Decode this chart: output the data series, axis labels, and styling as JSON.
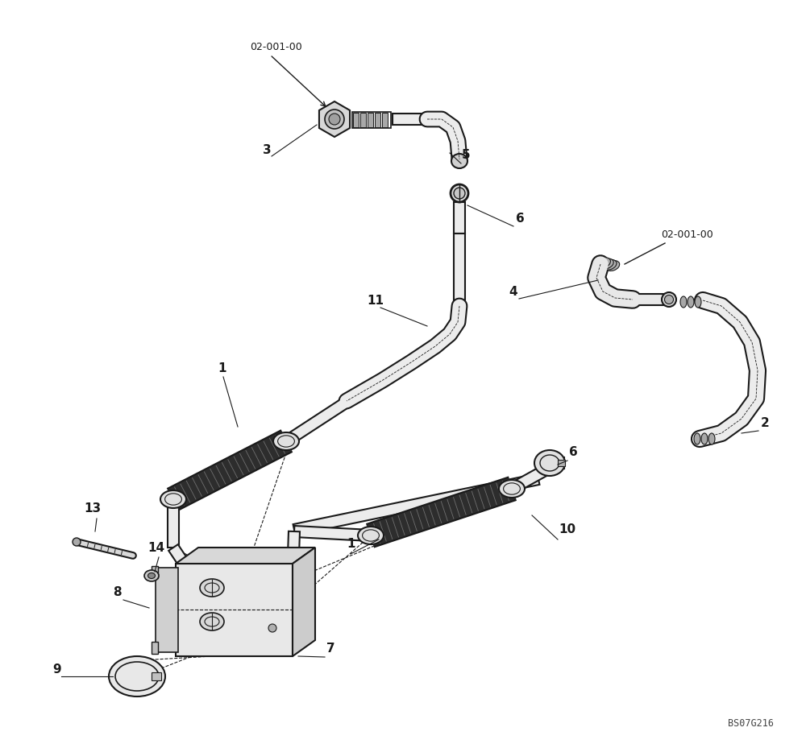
{
  "bg_color": "#ffffff",
  "line_color": "#1a1a1a",
  "label_color": "#000000",
  "figure_width": 10.0,
  "figure_height": 9.24,
  "dpi": 100,
  "watermark": "BS07G216",
  "ref_label_top": "02-001-00",
  "ref_label_right": "02-001-00"
}
